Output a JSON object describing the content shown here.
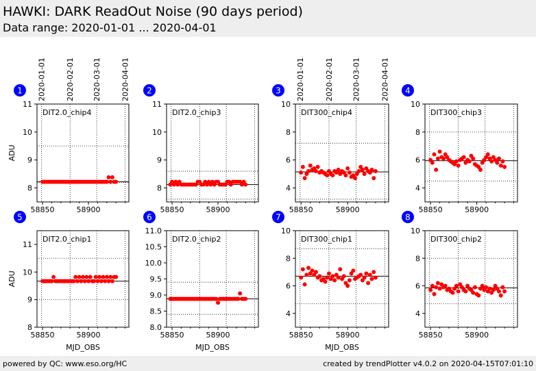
{
  "header": {
    "title": "HAWKI: DARK ReadOut Noise (90 days period)",
    "subtitle": "Data range: 2020-01-01 ... 2020-04-01"
  },
  "footer": {
    "left": "powered by QC: www.eso.org/HC",
    "right": "created by trendPlotter v4.0.2 on 2020-04-15T07:01:10"
  },
  "colors": {
    "points": "#ff0000",
    "badge": "#0000ff",
    "median": "#000000"
  },
  "date_axis": {
    "labels": [
      "2020-01-01",
      "2020-02-01",
      "2020-03-01",
      "2020-04-01"
    ],
    "mjd": [
      58849,
      58880,
      58909,
      58940
    ]
  },
  "chart_data": [
    {
      "type": "scatter",
      "number": "1",
      "label": "DIT2.0_chip4",
      "ylabel": "ADU",
      "xlabel": "",
      "ylim": [
        7.5,
        11
      ],
      "yticks": [
        8,
        9,
        10,
        11
      ],
      "xlim": [
        58844,
        58944
      ],
      "xticks": [
        58850,
        58900
      ],
      "median": 8.22,
      "grid_y": [
        8.2,
        9.5
      ],
      "x": [
        58850,
        58852,
        58854,
        58856,
        58858,
        58860,
        58862,
        58864,
        58866,
        58868,
        58870,
        58872,
        58874,
        58876,
        58878,
        58880,
        58882,
        58884,
        58886,
        58888,
        58890,
        58892,
        58894,
        58896,
        58898,
        58900,
        58902,
        58904,
        58906,
        58908,
        58910,
        58912,
        58914,
        58916,
        58918,
        58920,
        58922,
        58924,
        58926,
        58928,
        58930
      ],
      "y": [
        8.22,
        8.22,
        8.22,
        8.22,
        8.22,
        8.22,
        8.22,
        8.22,
        8.22,
        8.22,
        8.22,
        8.22,
        8.22,
        8.22,
        8.22,
        8.22,
        8.22,
        8.22,
        8.22,
        8.22,
        8.22,
        8.22,
        8.22,
        8.22,
        8.22,
        8.22,
        8.22,
        8.22,
        8.22,
        8.22,
        8.22,
        8.22,
        8.22,
        8.22,
        8.22,
        8.22,
        8.38,
        8.22,
        8.38,
        8.22,
        8.22
      ]
    },
    {
      "type": "scatter",
      "number": "2",
      "label": "DIT2.0_chip3",
      "ylabel": "",
      "xlabel": "",
      "ylim": [
        7.5,
        11
      ],
      "yticks": [
        8,
        9,
        10,
        11
      ],
      "xlim": [
        58844,
        58944
      ],
      "xticks": [
        58850,
        58900
      ],
      "median": 8.12,
      "grid_y": [
        8.6,
        7.6
      ],
      "x": [
        58848,
        58850,
        58852,
        58854,
        58856,
        58858,
        58860,
        58862,
        58864,
        58866,
        58868,
        58870,
        58872,
        58874,
        58876,
        58878,
        58880,
        58882,
        58884,
        58886,
        58888,
        58890,
        58892,
        58894,
        58896,
        58898,
        58900,
        58902,
        58904,
        58906,
        58908,
        58910,
        58912,
        58914,
        58916,
        58918,
        58920,
        58922,
        58924,
        58926,
        58928,
        58930
      ],
      "y": [
        8.12,
        8.22,
        8.12,
        8.22,
        8.12,
        8.22,
        8.12,
        8.12,
        8.12,
        8.12,
        8.12,
        8.12,
        8.12,
        8.12,
        8.12,
        8.22,
        8.22,
        8.12,
        8.12,
        8.22,
        8.12,
        8.22,
        8.12,
        8.22,
        8.12,
        8.22,
        8.22,
        8.12,
        8.12,
        8.12,
        8.12,
        8.22,
        8.22,
        8.12,
        8.22,
        8.22,
        8.22,
        8.22,
        8.22,
        8.12,
        8.22,
        8.12
      ]
    },
    {
      "type": "scatter",
      "number": "3",
      "label": "DIT300_chip4",
      "ylabel": "",
      "xlabel": "",
      "ylim": [
        3,
        10
      ],
      "yticks": [
        4,
        6,
        8,
        10
      ],
      "xlim": [
        58844,
        58944
      ],
      "xticks": [
        58850,
        58900
      ],
      "median": 5.15,
      "grid_y": [
        7.2,
        3.2
      ],
      "x": [
        58850,
        58852,
        58854,
        58856,
        58858,
        58860,
        58862,
        58864,
        58866,
        58868,
        58870,
        58872,
        58874,
        58876,
        58878,
        58880,
        58882,
        58884,
        58886,
        58888,
        58890,
        58892,
        58894,
        58896,
        58898,
        58900,
        58902,
        58904,
        58906,
        58908,
        58910,
        58912,
        58914,
        58916,
        58918,
        58920,
        58922,
        58924,
        58926,
        58928,
        58930
      ],
      "y": [
        5.1,
        5.5,
        4.7,
        5.0,
        5.2,
        5.6,
        5.3,
        5.4,
        5.2,
        5.5,
        5.1,
        5.2,
        5.1,
        5.0,
        4.9,
        5.2,
        5.0,
        4.9,
        5.2,
        5.1,
        5.3,
        5.0,
        5.2,
        5.1,
        4.9,
        5.4,
        5.1,
        4.8,
        4.9,
        4.7,
        5.0,
        5.2,
        5.5,
        5.3,
        5.0,
        5.4,
        5.2,
        5.1,
        5.3,
        4.7,
        5.2
      ]
    },
    {
      "type": "scatter",
      "number": "4",
      "label": "DIT300_chip3",
      "ylabel": "",
      "xlabel": "",
      "ylim": [
        3,
        10
      ],
      "yticks": [
        4,
        6,
        8,
        10
      ],
      "xlim": [
        58844,
        58944
      ],
      "xticks": [
        58850,
        58900
      ],
      "median": 5.95,
      "grid_y": [
        8.0,
        4.5
      ],
      "x": [
        58850,
        58852,
        58854,
        58856,
        58858,
        58860,
        58862,
        58864,
        58866,
        58868,
        58870,
        58872,
        58874,
        58876,
        58878,
        58880,
        58882,
        58884,
        58886,
        58888,
        58890,
        58892,
        58894,
        58896,
        58898,
        58900,
        58902,
        58904,
        58906,
        58908,
        58910,
        58912,
        58914,
        58916,
        58918,
        58920,
        58922,
        58924,
        58926,
        58928,
        58930
      ],
      "y": [
        6.0,
        5.8,
        6.4,
        5.3,
        6.1,
        6.6,
        6.2,
        6.1,
        6.4,
        6.2,
        6.0,
        5.9,
        5.8,
        5.7,
        5.9,
        5.6,
        6.0,
        6.1,
        6.2,
        5.8,
        6.0,
        5.9,
        6.3,
        6.1,
        5.7,
        5.6,
        5.5,
        5.3,
        5.8,
        6.0,
        6.2,
        6.4,
        6.1,
        5.9,
        6.2,
        6.0,
        5.8,
        6.1,
        5.6,
        5.9,
        5.5
      ]
    },
    {
      "type": "scatter",
      "number": "5",
      "label": "DIT2.0_chip1",
      "ylabel": "ADU",
      "xlabel": "MJD_OBS",
      "ylim": [
        8,
        11.5
      ],
      "yticks": [
        8,
        9,
        10,
        11
      ],
      "xlim": [
        58844,
        58944
      ],
      "xticks": [
        58850,
        58900
      ],
      "median": 9.67,
      "grid_y": [
        10.5,
        9.0
      ],
      "x": [
        58850,
        58852,
        58854,
        58856,
        58858,
        58860,
        58862,
        58864,
        58866,
        58868,
        58870,
        58872,
        58874,
        58876,
        58878,
        58880,
        58882,
        58884,
        58886,
        58888,
        58890,
        58892,
        58894,
        58896,
        58898,
        58900,
        58902,
        58904,
        58906,
        58908,
        58910,
        58912,
        58914,
        58916,
        58918,
        58920,
        58922,
        58924,
        58926,
        58928,
        58930
      ],
      "y": [
        9.67,
        9.67,
        9.67,
        9.67,
        9.67,
        9.67,
        9.82,
        9.67,
        9.67,
        9.67,
        9.67,
        9.67,
        9.67,
        9.67,
        9.67,
        9.67,
        9.67,
        9.67,
        9.82,
        9.67,
        9.82,
        9.67,
        9.82,
        9.67,
        9.82,
        9.67,
        9.82,
        9.67,
        9.67,
        9.82,
        9.67,
        9.82,
        9.67,
        9.82,
        9.67,
        9.82,
        9.67,
        9.82,
        9.67,
        9.82,
        9.82
      ]
    },
    {
      "type": "scatter",
      "number": "6",
      "label": "DIT2.0_chip2",
      "ylabel": "",
      "xlabel": "MJD_OBS",
      "ylim": [
        8,
        11
      ],
      "yticks": [
        8.0,
        8.5,
        9.0,
        9.5,
        10.0,
        10.5,
        11.0
      ],
      "xlim": [
        58844,
        58944
      ],
      "xticks": [
        58850,
        58900
      ],
      "median": 8.88,
      "grid_y": [
        9.4,
        8.4
      ],
      "x": [
        58848,
        58850,
        58852,
        58854,
        58856,
        58858,
        58860,
        58862,
        58864,
        58866,
        58868,
        58870,
        58872,
        58874,
        58876,
        58878,
        58880,
        58882,
        58884,
        58886,
        58888,
        58890,
        58892,
        58894,
        58896,
        58898,
        58900,
        58902,
        58904,
        58906,
        58908,
        58910,
        58912,
        58914,
        58916,
        58918,
        58920,
        58922,
        58924,
        58926,
        58928,
        58930
      ],
      "y": [
        8.88,
        8.88,
        8.88,
        8.88,
        8.88,
        8.88,
        8.88,
        8.88,
        8.88,
        8.88,
        8.88,
        8.88,
        8.88,
        8.88,
        8.88,
        8.88,
        8.88,
        8.88,
        8.88,
        8.88,
        8.88,
        8.88,
        8.88,
        8.88,
        8.88,
        8.88,
        8.76,
        8.88,
        8.88,
        8.88,
        8.88,
        8.88,
        8.88,
        8.88,
        8.88,
        8.88,
        8.88,
        8.88,
        9.05,
        8.88,
        8.88,
        8.88
      ]
    },
    {
      "type": "scatter",
      "number": "7",
      "label": "DIT300_chip1",
      "ylabel": "",
      "xlabel": "MJD_OBS",
      "ylim": [
        3,
        10
      ],
      "yticks": [
        4,
        6,
        8,
        10
      ],
      "xlim": [
        58844,
        58944
      ],
      "xticks": [
        58850,
        58900
      ],
      "median": 6.7,
      "grid_y": [
        8.7,
        4.7
      ],
      "x": [
        58850,
        58852,
        58854,
        58856,
        58858,
        58860,
        58862,
        58864,
        58866,
        58868,
        58870,
        58872,
        58874,
        58876,
        58878,
        58880,
        58882,
        58884,
        58886,
        58888,
        58890,
        58892,
        58894,
        58896,
        58898,
        58900,
        58902,
        58904,
        58906,
        58908,
        58910,
        58912,
        58914,
        58916,
        58918,
        58920,
        58922,
        58924,
        58926,
        58928,
        58930
      ],
      "y": [
        6.6,
        7.2,
        6.1,
        6.8,
        7.3,
        6.9,
        7.1,
        6.8,
        7.0,
        6.6,
        6.7,
        6.4,
        6.5,
        6.3,
        6.6,
        6.9,
        6.5,
        6.7,
        6.4,
        6.8,
        6.6,
        7.2,
        6.5,
        6.7,
        6.2,
        6.0,
        6.4,
        6.9,
        7.1,
        6.5,
        6.6,
        6.7,
        6.8,
        6.4,
        6.6,
        6.9,
        6.2,
        6.8,
        6.5,
        7.0,
        6.6
      ]
    },
    {
      "type": "scatter",
      "number": "8",
      "label": "DIT300_chip2",
      "ylabel": "",
      "xlabel": "",
      "ylim": [
        3,
        10
      ],
      "yticks": [
        4,
        6,
        8,
        10
      ],
      "xlim": [
        58844,
        58944
      ],
      "xticks": [
        58850,
        58900
      ],
      "median": 5.85,
      "grid_y": [
        8.0,
        4.7
      ],
      "x": [
        58850,
        58852,
        58854,
        58856,
        58858,
        58860,
        58862,
        58864,
        58866,
        58868,
        58870,
        58872,
        58874,
        58876,
        58878,
        58880,
        58882,
        58884,
        58886,
        58888,
        58890,
        58892,
        58894,
        58896,
        58898,
        58900,
        58902,
        58904,
        58906,
        58908,
        58910,
        58912,
        58914,
        58916,
        58918,
        58920,
        58922,
        58924,
        58926,
        58928,
        58930
      ],
      "y": [
        5.7,
        6.0,
        5.4,
        5.9,
        6.2,
        5.8,
        6.1,
        5.9,
        6.0,
        5.7,
        5.8,
        5.6,
        5.5,
        5.8,
        6.0,
        5.6,
        6.1,
        5.9,
        5.7,
        5.6,
        6.0,
        5.8,
        5.7,
        5.5,
        5.9,
        5.4,
        5.3,
        5.8,
        6.0,
        5.7,
        5.9,
        5.6,
        5.8,
        5.5,
        5.7,
        6.0,
        5.8,
        5.6,
        5.3,
        5.9,
        5.6
      ]
    }
  ]
}
